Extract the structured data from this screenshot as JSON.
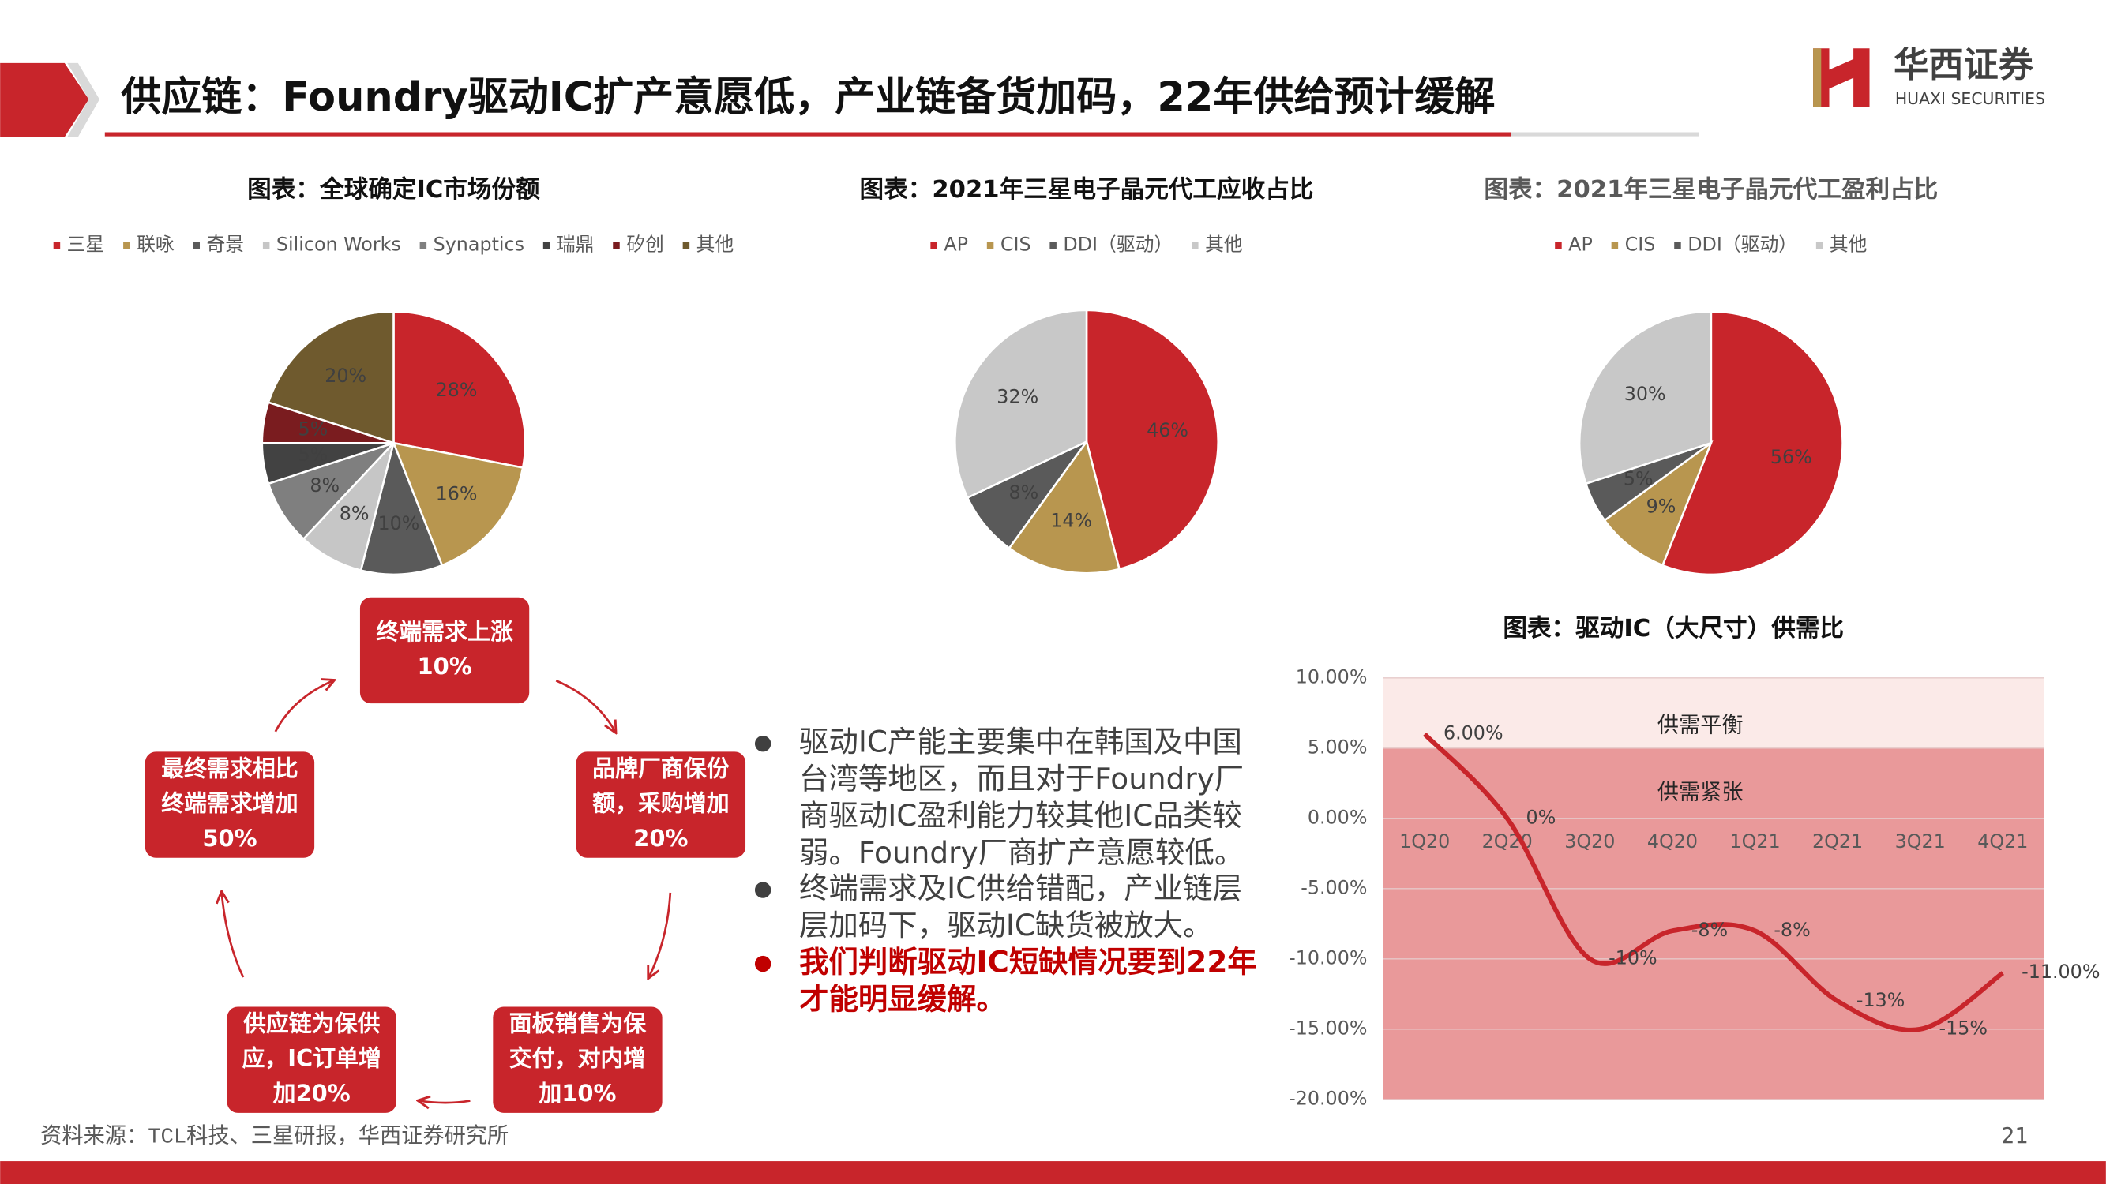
{
  "header": {
    "title": "供应链：Foundry驱动IC扩产意愿低，产业链备货加码，22年供给预计缓解",
    "logo_cn": "华西证券",
    "logo_en": "HUAXI SECURITIES"
  },
  "chart_data": [
    {
      "type": "pie",
      "title": "图表：全球确定IC市场份额",
      "categories": [
        "三星",
        "联咏",
        "奇景",
        "Silicon Works",
        "Synaptics",
        "瑞鼎",
        "矽创",
        "其他"
      ],
      "values": [
        28,
        16,
        10,
        8,
        8,
        5,
        5,
        20
      ],
      "value_labels": [
        "28%",
        "16%",
        "10%",
        "8%",
        "8%",
        "5%",
        "5%",
        "20%"
      ],
      "colors": [
        "#c8252b",
        "#b8964f",
        "#5a5a5a",
        "#c6c6c6",
        "#7f7f7f",
        "#424242",
        "#7a1c1f",
        "#6f5a2e"
      ]
    },
    {
      "type": "pie",
      "title": "图表：2021年三星电子晶元代工应收占比",
      "categories": [
        "AP",
        "CIS",
        "DDI（驱动）",
        "其他"
      ],
      "values": [
        46,
        14,
        8,
        32
      ],
      "value_labels": [
        "46%",
        "14%",
        "8%",
        "32%"
      ],
      "colors": [
        "#c8252b",
        "#b8964f",
        "#5a5a5a",
        "#c8c8c8"
      ]
    },
    {
      "type": "pie",
      "title": "图表：2021年三星电子晶元代工盈利占比",
      "categories": [
        "AP",
        "CIS",
        "DDI（驱动）",
        "其他"
      ],
      "values": [
        56,
        9,
        5,
        30
      ],
      "value_labels": [
        "56%",
        "9%",
        "5%",
        "30%"
      ],
      "colors": [
        "#c8252b",
        "#b8964f",
        "#5a5a5a",
        "#c8c8c8"
      ]
    },
    {
      "type": "line",
      "title": "图表：驱动IC（大尺寸）供需比",
      "categories": [
        "1Q20",
        "2Q20",
        "3Q20",
        "4Q20",
        "1Q21",
        "2Q21",
        "3Q21",
        "4Q21"
      ],
      "values": [
        6,
        0,
        -10,
        -8,
        -8,
        -13,
        -15,
        -11
      ],
      "value_labels": [
        "6.00%",
        "0%",
        "-10%",
        "-8%",
        "-8%",
        "-13%",
        "-15%",
        "-11.00%"
      ],
      "color": "#c8252b",
      "ylim": [
        -20,
        10
      ],
      "yticks": [
        {
          "value": -20,
          "label": "-20.00%"
        },
        {
          "value": -15,
          "label": "-15.00%"
        },
        {
          "value": -10,
          "label": "-10.00%"
        },
        {
          "value": -5,
          "label": "-5.00%"
        },
        {
          "value": 0,
          "label": "0.00%"
        },
        {
          "value": 5,
          "label": "5.00%"
        },
        {
          "value": 10,
          "label": "10.00%"
        }
      ],
      "grid": true,
      "bands": [
        {
          "label": "供需平衡",
          "from": 5,
          "to": 10,
          "color": "#fbeae8"
        },
        {
          "label": "供需紧张",
          "from": -20,
          "to": 5,
          "color": "#e9999a"
        }
      ]
    }
  ],
  "cycle": {
    "nodes": [
      {
        "lines": [
          "终端需求上涨",
          "10%"
        ]
      },
      {
        "lines": [
          "品牌厂商保份",
          "额，采购增加",
          "20%"
        ]
      },
      {
        "lines": [
          "面板销售为保",
          "交付，对内增",
          "加10%"
        ]
      },
      {
        "lines": [
          "供应链为保供",
          "应，IC订单增",
          "加20%"
        ]
      },
      {
        "lines": [
          "最终需求相比",
          "终端需求增加",
          "50%"
        ]
      }
    ]
  },
  "bullets": [
    {
      "lines": [
        "驱动IC产能主要集中在韩国及中国",
        "台湾等地区，而且对于Foundry厂",
        "商驱动IC盈利能力较其他IC品类较",
        "弱。Foundry厂商扩产意愿较低。"
      ],
      "color": "#404040"
    },
    {
      "lines": [
        "终端需求及IC供给错配，产业链层",
        "层加码下，驱动IC缺货被放大。"
      ],
      "color": "#404040"
    },
    {
      "lines": [
        "我们判断驱动IC短缺情况要到22年",
        "才能明显缓解。"
      ],
      "color": "#c00000"
    }
  ],
  "footer": {
    "source": "资料来源：TCL科技、三星研报，华西证券研究所",
    "page": "21"
  }
}
